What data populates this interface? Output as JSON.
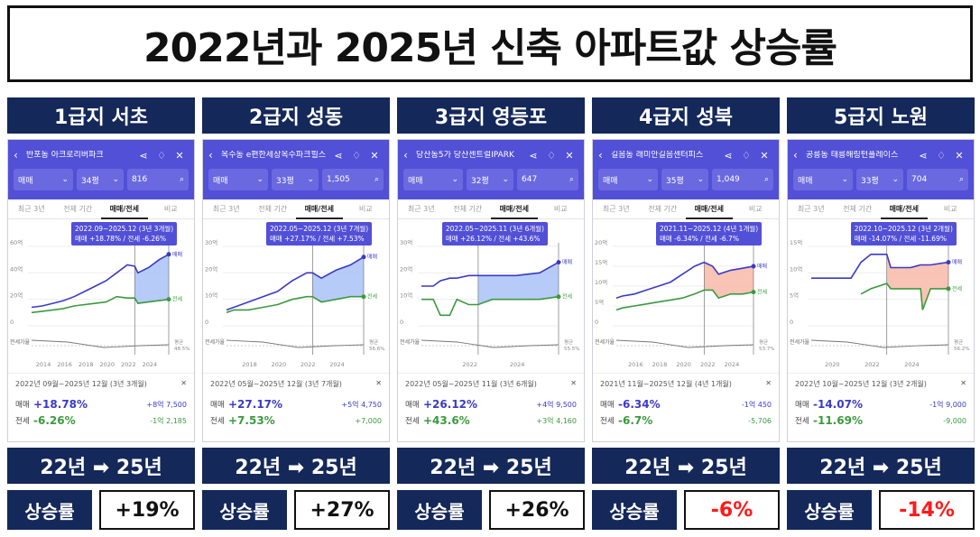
{
  "title": "2022년과 2025년 신축 아파트값 상승률",
  "colors": {
    "navy": "#14285a",
    "purple": "#5250d6",
    "sale": "#3b39c9",
    "jeonse": "#3a9a3e",
    "up": "#111111",
    "down": "#ff1a1a"
  },
  "phone_ui": {
    "tabs": [
      "최근 3년",
      "전체 기간",
      "매매/전세",
      "비교"
    ],
    "active_tab": "매매/전세",
    "filter_sale": "매매",
    "sale_label": "매매",
    "jeonse_label": "전세",
    "jeonse_rate_label": "전세가율",
    "avg_label": "평균",
    "close_symbol": "✕"
  },
  "arrow_label": "22년 ➡ 25년",
  "rate_label": "상승률",
  "columns": [
    {
      "tier": "1급지 서초",
      "apt": "반포동 아크로리버파크",
      "size": "34평",
      "listings": "816",
      "tooltip_period": "2022.09~2025.12 (3년 3개월)",
      "tooltip_values": "매매 +18.78%  /  전세 -6.26%",
      "summary_period": "2022년 09월~2025년 12월 (3년 3개월)",
      "sale_pct": "+18.78%",
      "sale_amt": "+8억 7,500",
      "jeonse_pct": "-6.26%",
      "jeonse_amt": "-1억 2,185",
      "avg_pct": "48.5%",
      "rate": "+19%",
      "rate_up": true,
      "chart_data": {
        "type": "line",
        "x_ticks": [
          "2014",
          "2016",
          "2018",
          "2020",
          "2022",
          "2024"
        ],
        "y_ticks": [
          "0",
          "20억",
          "40억",
          "60억"
        ],
        "ylim": [
          0,
          60
        ],
        "x": [
          2013,
          2014,
          2015,
          2016,
          2017,
          2018,
          2019,
          2020,
          2021,
          2022,
          2022.7,
          2023,
          2024,
          2025,
          2025.9
        ],
        "series": [
          {
            "name": "매매",
            "values": [
              14,
              15,
              17,
              19,
              22,
              26,
              30,
              34,
              40,
              46,
              45,
              40,
              44,
              50,
              54
            ]
          },
          {
            "name": "전세",
            "values": [
              10,
              11,
              12,
              13,
              15,
              16,
              17,
              18,
              22,
              21,
              21,
              17,
              18,
              19,
              20
            ]
          }
        ],
        "highlight": [
          2022.7,
          2025.9
        ],
        "fill": "increase"
      }
    },
    {
      "tier": "2급지 성동",
      "apt": "옥수동 e편한세상옥수파크힐스",
      "size": "33평",
      "listings": "1,505",
      "tooltip_period": "2022.05~2025.12 (3년 7개월)",
      "tooltip_values": "매매 +27.17%  /  전세 +7.53%",
      "summary_period": "2022년 05월~2025년 12월 (3년 7개월)",
      "sale_pct": "+27.17%",
      "sale_amt": "+5억 4,750",
      "jeonse_pct": "+7.53%",
      "jeonse_amt": "+7,000",
      "avg_pct": "56.6%",
      "rate": "+27%",
      "rate_up": true,
      "chart_data": {
        "type": "line",
        "x_ticks": [
          "2018",
          "2020",
          "2022",
          "2024"
        ],
        "y_ticks": [
          "0",
          "10억",
          "20억",
          "30억"
        ],
        "ylim": [
          0,
          30
        ],
        "x": [
          2016.5,
          2017,
          2018,
          2019,
          2020,
          2021,
          2022,
          2022.4,
          2023,
          2024,
          2025,
          2025.9
        ],
        "series": [
          {
            "name": "매매",
            "values": [
              6,
              7,
              9,
              11,
              13,
              17,
              20,
              20,
              18,
              21,
              23,
              26
            ]
          },
          {
            "name": "전세",
            "values": [
              5,
              6,
              6,
              7,
              8,
              10,
              11,
              11,
              9,
              10,
              11,
              11
            ]
          }
        ],
        "highlight": [
          2022.4,
          2025.9
        ],
        "fill": "increase"
      }
    },
    {
      "tier": "3급지 영등포",
      "apt": "당산동5가 당산센트럴IPARK",
      "size": "32평",
      "listings": "647",
      "tooltip_period": "2022.05~2025.11 (3년 6개월)",
      "tooltip_values": "매매 +26.12%  /  전세 +43.6%",
      "summary_period": "2022년 05월~2025년 11월 (3년 6개월)",
      "sale_pct": "+26.12%",
      "sale_amt": "+4억 9,500",
      "jeonse_pct": "+43.6%",
      "jeonse_amt": "+3억 4,160",
      "avg_pct": "55.5%",
      "rate": "+26%",
      "rate_up": true,
      "chart_data": {
        "type": "line",
        "x_ticks": [
          "2022",
          "2024"
        ],
        "y_ticks": [
          "0",
          "10억",
          "20억",
          "30억"
        ],
        "ylim": [
          0,
          30
        ],
        "x": [
          2020,
          2020.5,
          2020.8,
          2021.2,
          2021.5,
          2022,
          2022.4,
          2023,
          2024,
          2025,
          2025.8
        ],
        "series": [
          {
            "name": "매매",
            "values": [
              15,
              15,
              17,
              18,
              18,
              19,
              19,
              19,
              19,
              20,
              24
            ]
          },
          {
            "name": "전세",
            "values": [
              10,
              10,
              4,
              4,
              10,
              8,
              8,
              10,
              10,
              10,
              11
            ]
          }
        ],
        "highlight": [
          2022.4,
          2025.8
        ],
        "fill": "increase"
      }
    },
    {
      "tier": "4급지 성북",
      "apt": "길음동 래미안길음센터피스",
      "size": "35평",
      "listings": "1,049",
      "tooltip_period": "2021.11~2025.12 (4년 1개월)",
      "tooltip_values": "매매 -6.34%  /  전세 -6.7%",
      "summary_period": "2021년 11월~2025년 12월 (4년 1개월)",
      "sale_pct": "-6.34%",
      "sale_amt": "-1억 450",
      "jeonse_pct": "-6.7%",
      "jeonse_amt": "-5,706",
      "avg_pct": "53.7%",
      "rate": "-6%",
      "rate_up": false,
      "chart_data": {
        "type": "line",
        "x_ticks": [
          "2016",
          "2018",
          "2020",
          "2022",
          "2024"
        ],
        "y_ticks": [
          "0",
          "5억",
          "10억",
          "15억",
          "20억"
        ],
        "ylim": [
          0,
          20
        ],
        "x": [
          2014.5,
          2015,
          2016,
          2017,
          2018,
          2019,
          2020,
          2021,
          2021.8,
          2022.5,
          2023,
          2024,
          2025,
          2025.9
        ],
        "series": [
          {
            "name": "매매",
            "values": [
              7,
              7.5,
              8,
              9,
              10,
              11,
              13,
              15,
              16,
              15,
              13,
              14,
              14.5,
              15
            ]
          },
          {
            "name": "전세",
            "values": [
              4,
              4.5,
              5,
              5.5,
              6,
              6.5,
              7,
              8,
              9,
              9,
              7,
              8,
              8,
              8.5
            ]
          }
        ],
        "highlight": [
          2021.8,
          2025.9
        ],
        "fill": "decrease"
      }
    },
    {
      "tier": "5급지 노원",
      "apt": "공릉동 태릉해링턴플레이스",
      "size": "33평",
      "listings": "704",
      "tooltip_period": "2022.10~2025.12 (3년 2개월)",
      "tooltip_values": "매매 -14.07%  /  전세 -11.69%",
      "summary_period": "2022년 10월~2025년 12월 (3년 2개월)",
      "sale_pct": "-14.07%",
      "sale_amt": "-1억 9,000",
      "jeonse_pct": "-11.69%",
      "jeonse_amt": "-9,000",
      "avg_pct": "56.2%",
      "rate": "-14%",
      "rate_up": false,
      "chart_data": {
        "type": "line",
        "x_ticks": [
          "2020",
          "2022",
          "2024"
        ],
        "y_ticks": [
          "0",
          "5억",
          "10억",
          "15억"
        ],
        "ylim": [
          0,
          15
        ],
        "x": [
          2019,
          2020,
          2021,
          2021.5,
          2022,
          2022.8,
          2023,
          2024,
          2024.5,
          2024.6,
          2025,
          2025.9
        ],
        "series": [
          {
            "name": "매매",
            "values": [
              9,
              9,
              9,
              12,
              13.5,
              13.5,
              11,
              11,
              11.5,
              11.5,
              11.5,
              12
            ]
          },
          {
            "name": "전세",
            "values": [
              null,
              null,
              null,
              6,
              7,
              8,
              7,
              7,
              7,
              3,
              7,
              7
            ]
          }
        ],
        "highlight": [
          2022.8,
          2025.9
        ],
        "fill": "decrease"
      }
    }
  ]
}
